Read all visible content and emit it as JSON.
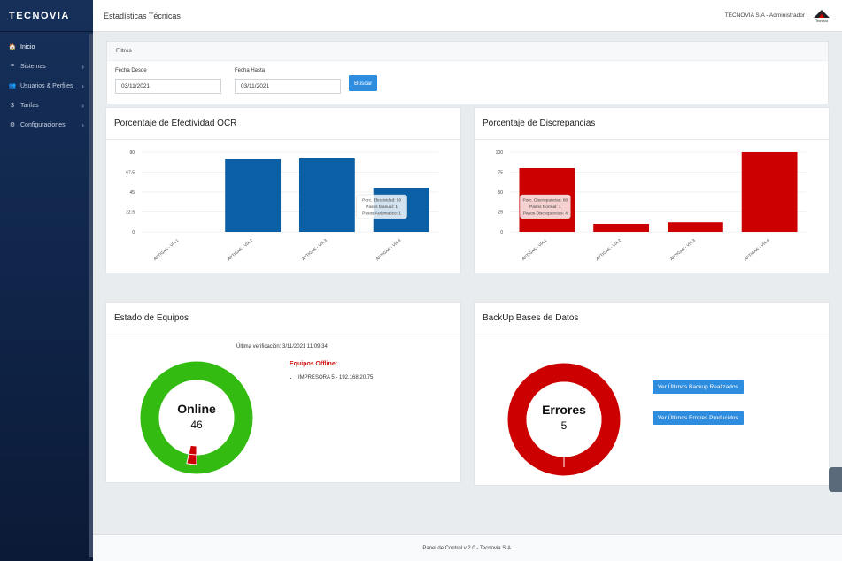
{
  "brand": "TECNOVIA",
  "sidebar": {
    "items": [
      {
        "icon": "🏠",
        "label": "Inicio",
        "chevron": ""
      },
      {
        "icon": "⌗",
        "label": "Sistemas",
        "chevron": "›"
      },
      {
        "icon": "👥",
        "label": "Usuarios & Perfiles",
        "chevron": "›"
      },
      {
        "icon": "$",
        "label": "Tarifas",
        "chevron": "›"
      },
      {
        "icon": "⚙",
        "label": "Configuraciones",
        "chevron": "›"
      }
    ]
  },
  "topbar": {
    "title": "Estadísticas Técnicas",
    "user": "TECNOVIA S.A - Administrador",
    "logo_text": "Tecnovia"
  },
  "filters": {
    "title": "Filtros",
    "desde_label": "Fecha Desde",
    "desde_value": "03/11/2021",
    "hasta_label": "Fecha Hasta",
    "hasta_value": "03/11/2021",
    "buscar": "Buscar"
  },
  "ocr": {
    "title": "Porcentaje de Efectividad OCR",
    "tooltip": [
      "Porc. Efectividad: 50",
      "Pasos Manual: 1",
      "Pasos Automatico: 1"
    ]
  },
  "disc": {
    "title": "Porcentaje de Discrepancias",
    "tooltip": [
      "Porc. Discrepancias: 80",
      "Pasos Normal: 1",
      "Pasos Discrepancias: 4"
    ]
  },
  "equipos": {
    "title": "Estado de Equipos",
    "verificacion": "Última verificación: 3/11/2021 11:09:34",
    "offline_title": "Equipos Offline:",
    "offline_items": [
      "IMPRESORA 5 - 192.168.20.75"
    ],
    "donut_label": "Online",
    "donut_value": "46"
  },
  "backup": {
    "title": "BackUp Bases de Datos",
    "btn_backup": "Ver Últimos Backup Realizados",
    "btn_errores": "Ver Últimos Errores Producidos",
    "donut_label": "Errores",
    "donut_value": "5"
  },
  "footer": "Panel de Control v 2.0 - Tecnovia S.A.",
  "colors": {
    "blue_bar": "#0b5fa5",
    "red_bar": "#cc0000",
    "green": "#33bb11",
    "red": "#cc0000"
  },
  "chart_data": [
    {
      "type": "bar",
      "title": "Porcentaje de Efectividad OCR",
      "categories": [
        "ARTIGAS - VIA 1",
        "ARTIGAS - VIA 2",
        "ARTIGAS - VIA 3",
        "ARTIGAS - VIA 4"
      ],
      "values": [
        0,
        82,
        83,
        50
      ],
      "ylim": [
        0,
        90
      ],
      "yticks": [
        "90",
        "67.5",
        "45",
        "22.5",
        "0"
      ]
    },
    {
      "type": "bar",
      "title": "Porcentaje de Discrepancias",
      "categories": [
        "ARTIGAS - VIA 1",
        "ARTIGAS - VIA 2",
        "ARTIGAS - VIA 3",
        "ARTIGAS - VIA 4"
      ],
      "values": [
        80,
        10,
        12,
        100
      ],
      "ylim": [
        0,
        100
      ],
      "yticks": [
        "100",
        "75",
        "50",
        "25",
        "0"
      ]
    }
  ]
}
